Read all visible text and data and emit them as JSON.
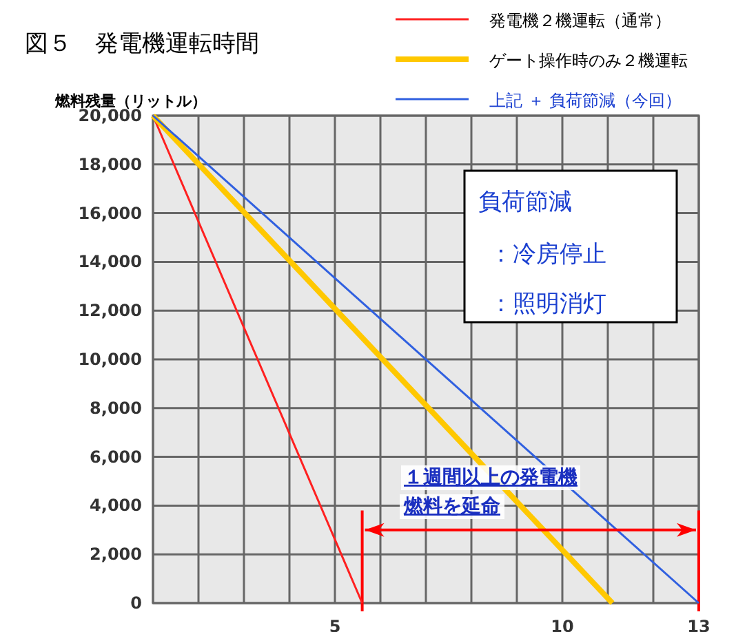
{
  "chart_data": {
    "type": "line",
    "title": "図５　発電機運転時間",
    "ylabel": "燃料残量（リットル）",
    "xlim": [
      1,
      13
    ],
    "xticks": [
      {
        "value": 1,
        "label": null
      },
      {
        "value": 2,
        "label": null
      },
      {
        "value": 3,
        "label": null
      },
      {
        "value": 4,
        "label": null
      },
      5,
      {
        "value": 6,
        "label": null
      },
      {
        "value": 7,
        "label": null
      },
      {
        "value": 8,
        "label": null
      },
      {
        "value": 9,
        "label": null
      },
      10,
      {
        "value": 11,
        "label": null
      },
      {
        "value": 12,
        "label": null
      },
      13
    ],
    "ylim": [
      0,
      20000
    ],
    "yticks": [
      {
        "value": 0,
        "label": "0"
      },
      {
        "value": 2000,
        "label": "2,000"
      },
      {
        "value": 4000,
        "label": "4,000"
      },
      {
        "value": 6000,
        "label": "6,000"
      },
      {
        "value": 8000,
        "label": "8,000"
      },
      {
        "value": 10000,
        "label": "10,000"
      },
      {
        "value": 12000,
        "label": "12,000"
      },
      {
        "value": 14000,
        "label": "14,000"
      },
      {
        "value": 16000,
        "label": "16,000"
      },
      {
        "value": 18000,
        "label": "18,000"
      },
      {
        "value": 20000,
        "label": "20,000"
      }
    ],
    "grid": true,
    "legend": "top right",
    "series": [
      {
        "name": "発電機２機運転（通常）",
        "color": "#ff2020",
        "x": [
          1,
          5.6
        ],
        "values": [
          20000,
          0
        ]
      },
      {
        "name": "ゲート操作時のみ２機運転",
        "color": "#ffc800",
        "x": [
          1,
          11.1
        ],
        "values": [
          20000,
          0
        ]
      },
      {
        "name": "上記 ＋ 負荷節減（今回）",
        "color": "#3060e0",
        "x": [
          1,
          13
        ],
        "values": [
          20000,
          0
        ]
      }
    ],
    "ref_lines": [
      {
        "axis": "x",
        "value": 5.6,
        "color": "#ff0000"
      },
      {
        "axis": "x",
        "value": 13,
        "color": "#ff0000"
      }
    ],
    "annotations": [
      "負荷節減",
      "：冷房停止",
      "：照明消灯",
      "１週間以上の発電機",
      "燃料を延命"
    ]
  }
}
